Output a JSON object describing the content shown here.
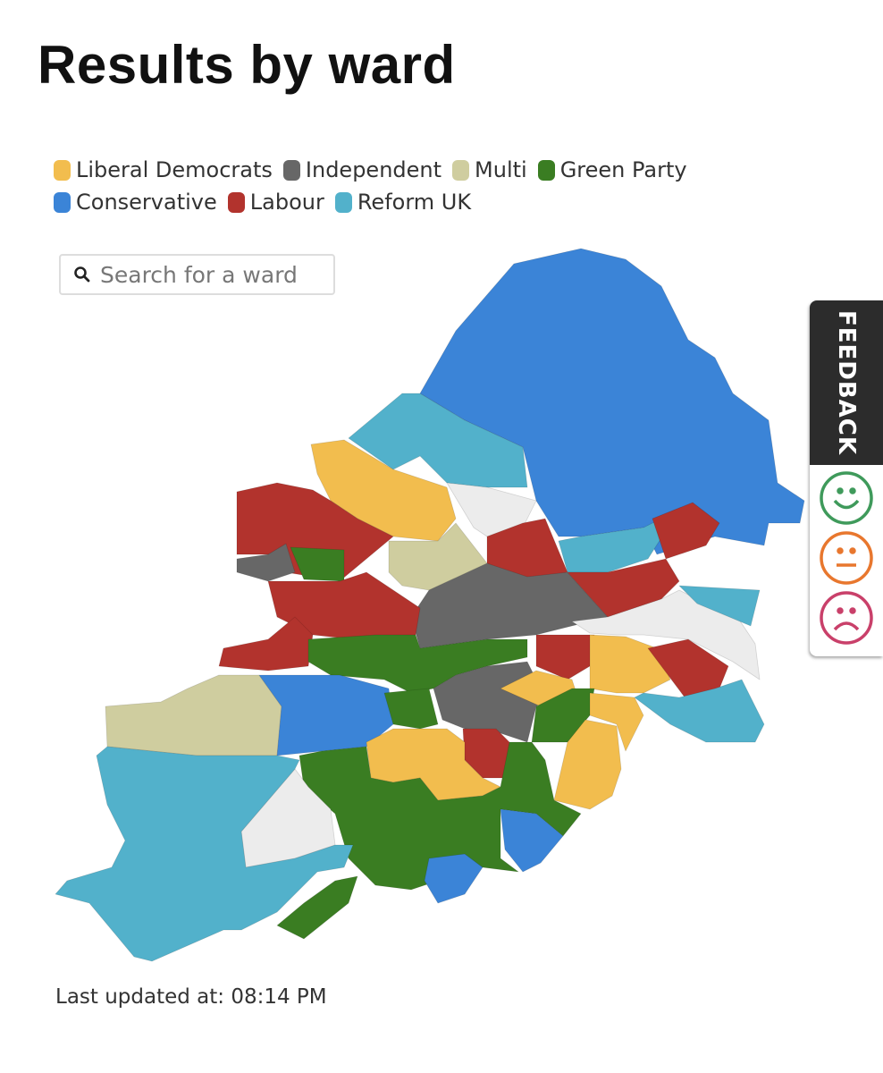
{
  "header": {
    "title": "Results by ward"
  },
  "legend": {
    "items": [
      {
        "label": "Liberal Democrats",
        "color": "#f2bd4e"
      },
      {
        "label": "Independent",
        "color": "#676767"
      },
      {
        "label": "Multi",
        "color": "#cfcd9f"
      },
      {
        "label": "Green Party",
        "color": "#3a7d22"
      },
      {
        "label": "Conservative",
        "color": "#3b84d7"
      },
      {
        "label": "Labour",
        "color": "#b2332d"
      },
      {
        "label": "Reform UK",
        "color": "#52b1cb"
      }
    ]
  },
  "search": {
    "placeholder": "Search for a ward"
  },
  "feedback": {
    "label": "FEEDBACK"
  },
  "footer": {
    "last_updated": "Last updated at: 08:14 PM"
  }
}
